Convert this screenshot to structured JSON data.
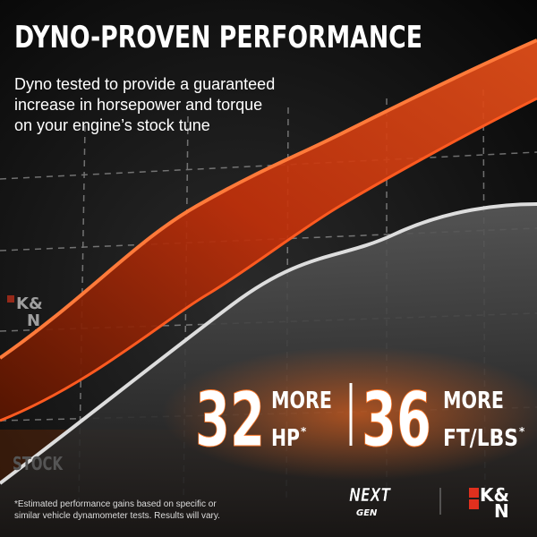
{
  "header": {
    "title": "DYNO-PROVEN PERFORMANCE",
    "subtitle_lines": [
      "Dyno tested to provide a guaranteed",
      "increase in horsepower and torque",
      "on your engine’s stock tune"
    ]
  },
  "graph_labels": {
    "upper_curve": [
      "K&",
      "N"
    ],
    "lower_curve": "STOCK"
  },
  "stats": [
    {
      "value": "32",
      "line1": "MORE",
      "line2": "HP",
      "mark": "*"
    },
    {
      "value": "36",
      "line1": "MORE",
      "line2": "FT/LBS",
      "mark": "*"
    }
  ],
  "footnote_lines": [
    "*Estimated performance gains based on specific or",
    "similar vehicle dynamometer tests. Results will vary."
  ],
  "logos": {
    "left": [
      "NEXT",
      "GEN"
    ],
    "right": [
      "K&",
      "N"
    ]
  }
}
